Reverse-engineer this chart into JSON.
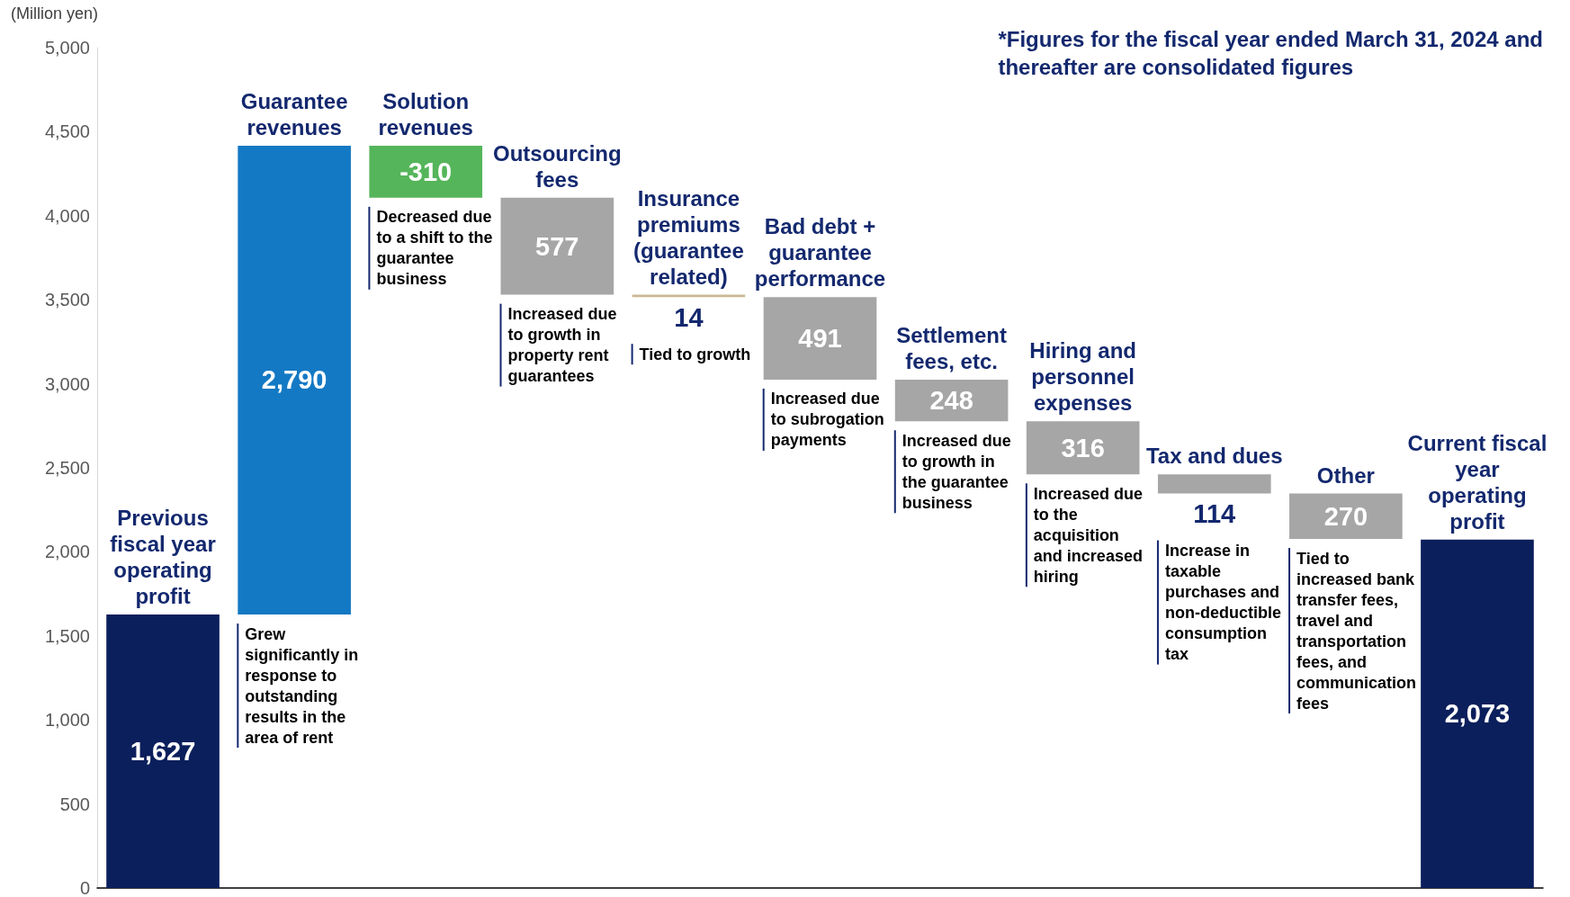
{
  "chart_data": {
    "type": "bar",
    "ylabel": "(Million yen)",
    "categories": [
      "Previous fiscal year operating profit",
      "Guarantee revenues",
      "Solution revenues",
      "Outsourcing fees",
      "Insurance premiums (guarantee related)",
      "Bad debt + guarantee performance",
      "Settlement fees, etc.",
      "Hiring and personnel expenses",
      "Tax and dues",
      "Other",
      "Current fiscal year operating profit"
    ],
    "values": [
      1627,
      2790,
      -310,
      -577,
      -14,
      -491,
      -248,
      -316,
      -114,
      -270,
      2073
    ],
    "base": [
      0,
      1627,
      4417,
      4107,
      3530,
      3516,
      3025,
      2777,
      2461,
      2347,
      0
    ],
    "value_labels": [
      "1,627",
      "2,790",
      "-310",
      "577",
      "14",
      "491",
      "248",
      "316",
      "114",
      "270",
      "2,073"
    ],
    "colors": [
      "#0b1f5c",
      "#1479c4",
      "#55b55a",
      "#a6a6a6",
      "#cbb894",
      "#a6a6a6",
      "#a6a6a6",
      "#a6a6a6",
      "#a6a6a6",
      "#a6a6a6",
      "#0b1f5c"
    ],
    "ylim": [
      0,
      5000
    ],
    "yticks": [
      0,
      500,
      {
        "value": 1000,
        "label": "1,000"
      },
      {
        "value": 1500,
        "label": "1,500"
      },
      {
        "value": 2000,
        "label": "2,000"
      },
      {
        "value": 2500,
        "label": "2,500"
      },
      {
        "value": 3000,
        "label": "3,000"
      },
      {
        "value": 3500,
        "label": "3,500"
      },
      {
        "value": 4000,
        "label": "4,000"
      },
      {
        "value": 4500,
        "label": "4,500"
      },
      {
        "value": 5000,
        "label": "5,000"
      }
    ],
    "tick_labels": "y",
    "annotations": [
      "*Figures for the fiscal year ended March 31, 2024 and thereafter are consolidated figures",
      "Grew significantly in response to outstanding results in the area of rent",
      "Decreased due to a shift to the guarantee business",
      "Increased due to growth in property rent guarantees",
      "Tied to growth",
      "Increased due to subrogation payments",
      "Increased due to growth in the guarantee business",
      "Increased due to the acquisition and increased hiring",
      "Increase in taxable purchases and non-deductible consumption tax",
      "Tied to increased bank transfer fees, travel and transportation fees, and communication fees"
    ]
  }
}
